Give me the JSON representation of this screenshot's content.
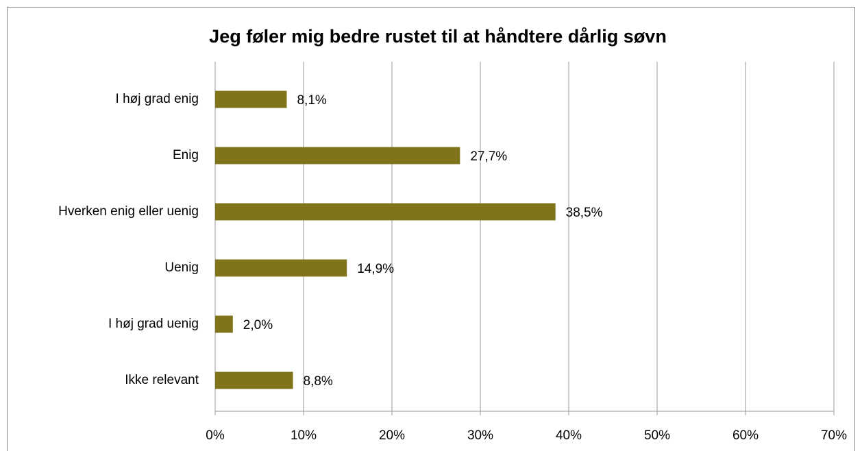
{
  "chart_data": {
    "type": "hbar",
    "title": "Jeg føler mig bedre rustet til at håndtere dårlig søvn",
    "categories": [
      "I høj grad enig",
      "Enig",
      "Hverken enig eller uenig",
      "Uenig",
      "I høj grad uenig",
      "Ikke relevant"
    ],
    "values": [
      8.1,
      27.7,
      38.5,
      14.9,
      2.0,
      8.8
    ],
    "value_labels": [
      "8,1%",
      "27,7%",
      "38,5%",
      "14,9%",
      "2,0%",
      "8,8%"
    ],
    "color": "#7f7419",
    "xlim": [
      0,
      70
    ],
    "xticks": [
      {
        "value": 0,
        "label": "0%"
      },
      {
        "value": 10,
        "label": "10%"
      },
      {
        "value": 20,
        "label": "20%"
      },
      {
        "value": 30,
        "label": "30%"
      },
      {
        "value": 40,
        "label": "40%"
      },
      {
        "value": 50,
        "label": "50%"
      },
      {
        "value": 60,
        "label": "60%"
      },
      {
        "value": 70,
        "label": "70%"
      }
    ],
    "grid": true
  }
}
